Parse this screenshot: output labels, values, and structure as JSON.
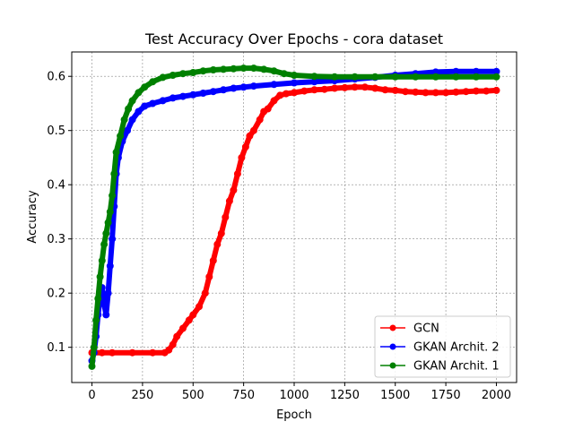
{
  "chart_data": {
    "type": "line",
    "title": "Test Accuracy Over Epochs - cora dataset",
    "xlabel": "Epoch",
    "ylabel": "Accuracy",
    "xlim": [
      -100,
      2100
    ],
    "ylim": [
      0.035,
      0.645
    ],
    "xticks": [
      0,
      250,
      500,
      750,
      1000,
      1250,
      1500,
      1750,
      2000
    ],
    "yticks": [
      0.1,
      0.2,
      0.3,
      0.4,
      0.5,
      0.6
    ],
    "grid": true,
    "legend_position": "lower-right",
    "series": [
      {
        "name": "GCN",
        "color": "#ff0000",
        "points": [
          [
            0,
            0.09
          ],
          [
            50,
            0.09
          ],
          [
            100,
            0.09
          ],
          [
            200,
            0.09
          ],
          [
            300,
            0.09
          ],
          [
            360,
            0.09
          ],
          [
            380,
            0.095
          ],
          [
            400,
            0.105
          ],
          [
            420,
            0.12
          ],
          [
            450,
            0.135
          ],
          [
            480,
            0.15
          ],
          [
            500,
            0.16
          ],
          [
            530,
            0.175
          ],
          [
            560,
            0.2
          ],
          [
            580,
            0.23
          ],
          [
            600,
            0.26
          ],
          [
            620,
            0.29
          ],
          [
            640,
            0.31
          ],
          [
            660,
            0.34
          ],
          [
            680,
            0.37
          ],
          [
            700,
            0.39
          ],
          [
            720,
            0.42
          ],
          [
            740,
            0.45
          ],
          [
            760,
            0.47
          ],
          [
            780,
            0.49
          ],
          [
            800,
            0.5
          ],
          [
            830,
            0.52
          ],
          [
            850,
            0.535
          ],
          [
            870,
            0.54
          ],
          [
            900,
            0.555
          ],
          [
            930,
            0.565
          ],
          [
            960,
            0.568
          ],
          [
            1000,
            0.57
          ],
          [
            1050,
            0.573
          ],
          [
            1100,
            0.575
          ],
          [
            1150,
            0.576
          ],
          [
            1200,
            0.578
          ],
          [
            1250,
            0.579
          ],
          [
            1300,
            0.58
          ],
          [
            1350,
            0.58
          ],
          [
            1400,
            0.578
          ],
          [
            1450,
            0.575
          ],
          [
            1500,
            0.574
          ],
          [
            1550,
            0.572
          ],
          [
            1600,
            0.571
          ],
          [
            1650,
            0.57
          ],
          [
            1700,
            0.57
          ],
          [
            1750,
            0.57
          ],
          [
            1800,
            0.571
          ],
          [
            1850,
            0.572
          ],
          [
            1900,
            0.573
          ],
          [
            1950,
            0.573
          ],
          [
            2000,
            0.574
          ]
        ]
      },
      {
        "name": "GKAN Archit. 2",
        "color": "#0000ff",
        "points": [
          [
            0,
            0.075
          ],
          [
            10,
            0.09
          ],
          [
            20,
            0.12
          ],
          [
            30,
            0.16
          ],
          [
            40,
            0.19
          ],
          [
            50,
            0.21
          ],
          [
            60,
            0.18
          ],
          [
            70,
            0.16
          ],
          [
            80,
            0.2
          ],
          [
            90,
            0.25
          ],
          [
            100,
            0.3
          ],
          [
            110,
            0.36
          ],
          [
            120,
            0.42
          ],
          [
            130,
            0.45
          ],
          [
            150,
            0.48
          ],
          [
            175,
            0.5
          ],
          [
            200,
            0.52
          ],
          [
            230,
            0.535
          ],
          [
            260,
            0.545
          ],
          [
            300,
            0.55
          ],
          [
            350,
            0.555
          ],
          [
            400,
            0.56
          ],
          [
            450,
            0.563
          ],
          [
            500,
            0.566
          ],
          [
            550,
            0.569
          ],
          [
            600,
            0.572
          ],
          [
            650,
            0.575
          ],
          [
            700,
            0.578
          ],
          [
            750,
            0.58
          ],
          [
            800,
            0.582
          ],
          [
            900,
            0.585
          ],
          [
            1000,
            0.588
          ],
          [
            1100,
            0.59
          ],
          [
            1200,
            0.592
          ],
          [
            1300,
            0.595
          ],
          [
            1400,
            0.598
          ],
          [
            1500,
            0.602
          ],
          [
            1600,
            0.605
          ],
          [
            1700,
            0.608
          ],
          [
            1800,
            0.609
          ],
          [
            1900,
            0.609
          ],
          [
            2000,
            0.609
          ]
        ]
      },
      {
        "name": "GKAN Archit. 1",
        "color": "#008000",
        "points": [
          [
            0,
            0.065
          ],
          [
            10,
            0.1
          ],
          [
            20,
            0.15
          ],
          [
            30,
            0.19
          ],
          [
            40,
            0.23
          ],
          [
            50,
            0.26
          ],
          [
            60,
            0.29
          ],
          [
            70,
            0.31
          ],
          [
            80,
            0.33
          ],
          [
            90,
            0.35
          ],
          [
            100,
            0.38
          ],
          [
            110,
            0.42
          ],
          [
            120,
            0.46
          ],
          [
            140,
            0.49
          ],
          [
            160,
            0.52
          ],
          [
            180,
            0.54
          ],
          [
            200,
            0.555
          ],
          [
            230,
            0.57
          ],
          [
            260,
            0.58
          ],
          [
            300,
            0.59
          ],
          [
            350,
            0.598
          ],
          [
            400,
            0.602
          ],
          [
            450,
            0.605
          ],
          [
            500,
            0.607
          ],
          [
            550,
            0.61
          ],
          [
            600,
            0.612
          ],
          [
            650,
            0.613
          ],
          [
            700,
            0.614
          ],
          [
            750,
            0.615
          ],
          [
            800,
            0.615
          ],
          [
            850,
            0.613
          ],
          [
            900,
            0.61
          ],
          [
            950,
            0.605
          ],
          [
            1000,
            0.602
          ],
          [
            1100,
            0.6
          ],
          [
            1200,
            0.599
          ],
          [
            1300,
            0.599
          ],
          [
            1400,
            0.599
          ],
          [
            1500,
            0.599
          ],
          [
            1600,
            0.599
          ],
          [
            1700,
            0.599
          ],
          [
            1800,
            0.599
          ],
          [
            1900,
            0.599
          ],
          [
            2000,
            0.599
          ]
        ]
      }
    ]
  }
}
